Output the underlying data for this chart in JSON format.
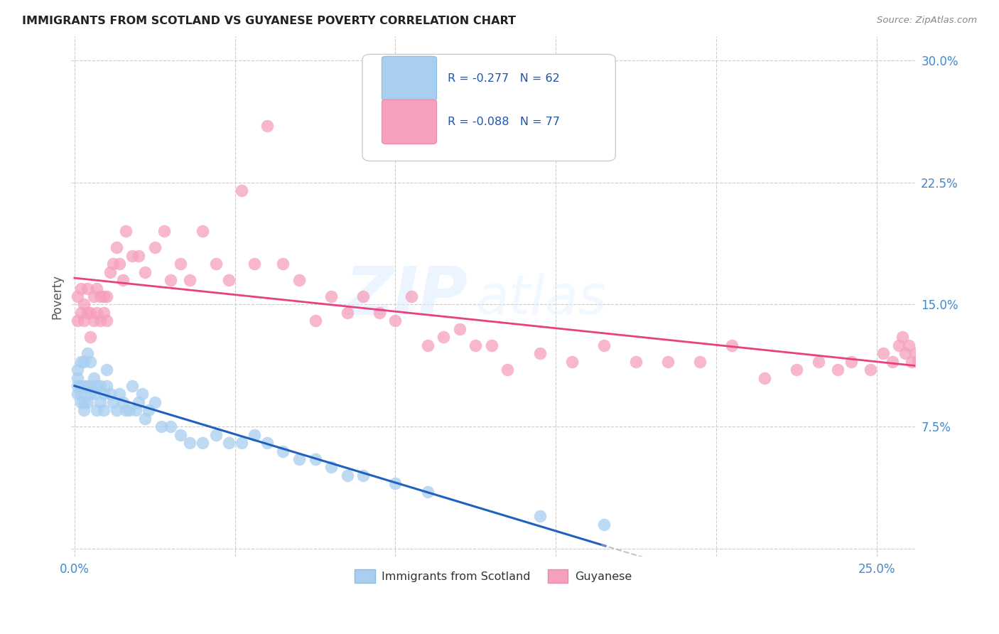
{
  "title": "IMMIGRANTS FROM SCOTLAND VS GUYANESE POVERTY CORRELATION CHART",
  "source": "Source: ZipAtlas.com",
  "ylabel": "Poverty",
  "xlim": [
    -0.001,
    0.262
  ],
  "ylim": [
    -0.005,
    0.315
  ],
  "x_tick_positions": [
    0.0,
    0.05,
    0.1,
    0.15,
    0.2,
    0.25
  ],
  "x_tick_labels": [
    "0.0%",
    "",
    "",
    "",
    "",
    "25.0%"
  ],
  "y_tick_positions": [
    0.0,
    0.075,
    0.15,
    0.225,
    0.3
  ],
  "y_tick_labels_right": [
    "",
    "7.5%",
    "15.0%",
    "22.5%",
    "30.0%"
  ],
  "scotland_R": -0.277,
  "scotland_N": 62,
  "guyanese_R": -0.088,
  "guyanese_N": 77,
  "scotland_color": "#a8cef0",
  "guyanese_color": "#f5a0bc",
  "scotland_line_color": "#2060c0",
  "guyanese_line_color": "#e84080",
  "legend_label_scotland": "Immigrants from Scotland",
  "legend_label_guyanese": "Guyanese",
  "watermark_zip": "ZIP",
  "watermark_atlas": "atlas",
  "scotland_x": [
    0.001,
    0.001,
    0.001,
    0.001,
    0.002,
    0.002,
    0.002,
    0.002,
    0.003,
    0.003,
    0.003,
    0.003,
    0.004,
    0.004,
    0.004,
    0.005,
    0.005,
    0.005,
    0.006,
    0.006,
    0.007,
    0.007,
    0.008,
    0.008,
    0.009,
    0.009,
    0.01,
    0.01,
    0.011,
    0.012,
    0.013,
    0.014,
    0.015,
    0.016,
    0.017,
    0.018,
    0.019,
    0.02,
    0.021,
    0.022,
    0.023,
    0.025,
    0.027,
    0.03,
    0.033,
    0.036,
    0.04,
    0.044,
    0.048,
    0.052,
    0.056,
    0.06,
    0.065,
    0.07,
    0.075,
    0.08,
    0.085,
    0.09,
    0.1,
    0.11,
    0.145,
    0.165
  ],
  "scotland_y": [
    0.095,
    0.1,
    0.105,
    0.11,
    0.09,
    0.095,
    0.1,
    0.115,
    0.085,
    0.09,
    0.1,
    0.115,
    0.09,
    0.1,
    0.12,
    0.1,
    0.095,
    0.115,
    0.105,
    0.095,
    0.1,
    0.085,
    0.1,
    0.09,
    0.095,
    0.085,
    0.1,
    0.11,
    0.095,
    0.09,
    0.085,
    0.095,
    0.09,
    0.085,
    0.085,
    0.1,
    0.085,
    0.09,
    0.095,
    0.08,
    0.085,
    0.09,
    0.075,
    0.075,
    0.07,
    0.065,
    0.065,
    0.07,
    0.065,
    0.065,
    0.07,
    0.065,
    0.06,
    0.055,
    0.055,
    0.05,
    0.045,
    0.045,
    0.04,
    0.035,
    0.02,
    0.015
  ],
  "guyanese_x": [
    0.001,
    0.001,
    0.002,
    0.002,
    0.003,
    0.003,
    0.004,
    0.004,
    0.005,
    0.005,
    0.006,
    0.006,
    0.007,
    0.007,
    0.008,
    0.008,
    0.009,
    0.009,
    0.01,
    0.01,
    0.011,
    0.012,
    0.013,
    0.014,
    0.015,
    0.016,
    0.018,
    0.02,
    0.022,
    0.025,
    0.028,
    0.03,
    0.033,
    0.036,
    0.04,
    0.044,
    0.048,
    0.052,
    0.056,
    0.06,
    0.065,
    0.07,
    0.075,
    0.08,
    0.085,
    0.09,
    0.095,
    0.1,
    0.105,
    0.11,
    0.115,
    0.12,
    0.125,
    0.13,
    0.135,
    0.145,
    0.155,
    0.165,
    0.175,
    0.185,
    0.195,
    0.205,
    0.215,
    0.225,
    0.232,
    0.238,
    0.242,
    0.248,
    0.252,
    0.255,
    0.257,
    0.258,
    0.259,
    0.26,
    0.261,
    0.262,
    0.263
  ],
  "guyanese_y": [
    0.14,
    0.155,
    0.145,
    0.16,
    0.15,
    0.14,
    0.145,
    0.16,
    0.13,
    0.145,
    0.14,
    0.155,
    0.145,
    0.16,
    0.14,
    0.155,
    0.145,
    0.155,
    0.14,
    0.155,
    0.17,
    0.175,
    0.185,
    0.175,
    0.165,
    0.195,
    0.18,
    0.18,
    0.17,
    0.185,
    0.195,
    0.165,
    0.175,
    0.165,
    0.195,
    0.175,
    0.165,
    0.22,
    0.175,
    0.26,
    0.175,
    0.165,
    0.14,
    0.155,
    0.145,
    0.155,
    0.145,
    0.14,
    0.155,
    0.125,
    0.13,
    0.135,
    0.125,
    0.125,
    0.11,
    0.12,
    0.115,
    0.125,
    0.115,
    0.115,
    0.115,
    0.125,
    0.105,
    0.11,
    0.115,
    0.11,
    0.115,
    0.11,
    0.12,
    0.115,
    0.125,
    0.13,
    0.12,
    0.125,
    0.115,
    0.12,
    0.115
  ]
}
